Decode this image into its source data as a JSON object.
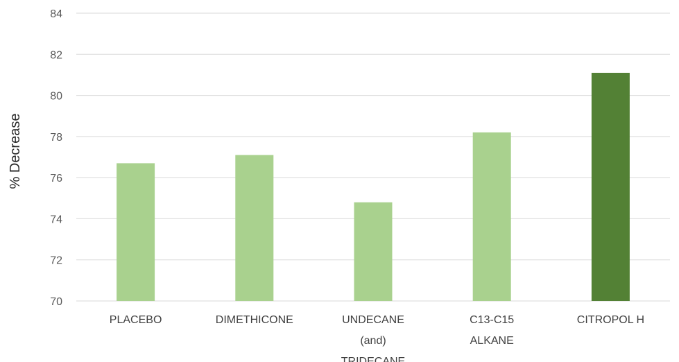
{
  "chart_data": {
    "type": "bar",
    "title": "",
    "xlabel": "",
    "ylabel": "% Decrease",
    "ylim": [
      70,
      84
    ],
    "yticks": [
      70,
      72,
      74,
      76,
      78,
      80,
      82,
      84
    ],
    "grid": true,
    "legend": "none",
    "categories": [
      [
        "PLACEBO"
      ],
      [
        "DIMETHICONE"
      ],
      [
        "UNDECANE",
        "(and)",
        "TRIDECANE"
      ],
      [
        "C13-C15",
        "ALKANE"
      ],
      [
        "CITROPOL H"
      ]
    ],
    "values": [
      76.7,
      77.1,
      74.8,
      78.2,
      81.1
    ],
    "colors": {
      "default_bar": "#a9d18e",
      "highlight_bar": "#538135"
    },
    "highlight_index": 4
  }
}
